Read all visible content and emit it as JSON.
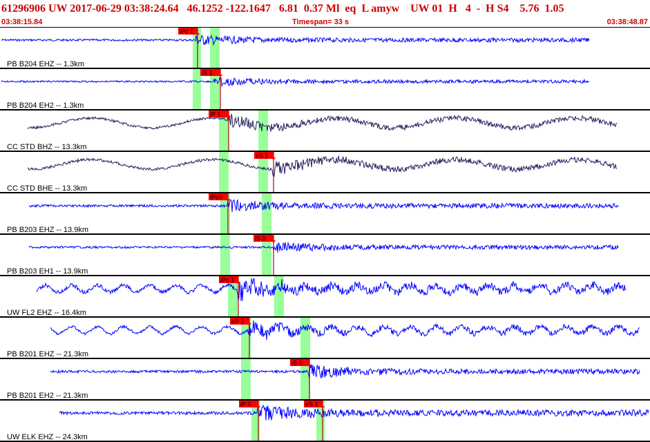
{
  "header": {
    "title": "61296906 UW 2017-06-29 03:38:24.64   46.1252 -122.1647   6.81  0.37 Ml  eq  L amyw    UW 01  H   4  -  H S4    5.76  1.05",
    "start_time": "03:38:15.84",
    "timespan": "Timespan=  33 s",
    "end_time": "03:38:48.87"
  },
  "colors": {
    "header_text": "#cc0000",
    "trace_blue": "#0000ff",
    "trace_navy": "#202060",
    "phase_window": "#99ff99",
    "pick_flag": "#ff0000"
  },
  "panels": [
    {
      "label": "PB B204 EHZ -- 1.3km",
      "color": "blue",
      "picks": [
        {
          "text": "iPc 1",
          "flag_at": "left"
        }
      ],
      "signal": {
        "start": 2,
        "end": 853,
        "onset": 283,
        "amp": 12
      }
    },
    {
      "label": "PB B204 EH2 -- 1.3km",
      "color": "blue",
      "picks": [
        {
          "text": "iS 1",
          "flag_at": "left"
        }
      ],
      "signal": {
        "start": 2,
        "end": 853,
        "onset": 310,
        "amp": 10
      }
    },
    {
      "label": "CC STD BHZ -- 13.3km",
      "color": "navy",
      "picks": [
        {
          "text": "iP 1",
          "flag_at": "left"
        }
      ],
      "signal": {
        "start": 40,
        "end": 893,
        "onset": 330,
        "amp": 15
      }
    },
    {
      "label": "CC STD BHE -- 13.3km",
      "color": "navy",
      "picks": [
        {
          "text": "eS 1",
          "flag_at": "left"
        }
      ],
      "signal": {
        "start": 40,
        "end": 893,
        "onset": 395,
        "amp": 16
      }
    },
    {
      "label": "PB B203 EHZ -- 13.9km",
      "color": "blue",
      "picks": [
        {
          "text": "iPc0",
          "flag_at": "left"
        }
      ],
      "signal": {
        "start": 42,
        "end": 895,
        "onset": 330,
        "amp": 14
      }
    },
    {
      "label": "PB B203 EH1 -- 13.9km",
      "color": "blue",
      "picks": [
        {
          "text": "iS 0",
          "flag_at": "left"
        }
      ],
      "signal": {
        "start": 42,
        "end": 895,
        "onset": 395,
        "amp": 12
      }
    },
    {
      "label": "UW FL2 EHZ -- 16.4km",
      "color": "blue",
      "picks": [
        {
          "text": "iPd 1",
          "flag_at": "left"
        }
      ],
      "signal": {
        "start": 53,
        "end": 906,
        "onset": 344,
        "amp": 22
      }
    },
    {
      "label": "PB B201 EHZ -- 21.3km",
      "color": "blue",
      "picks": [
        {
          "text": "eP 2",
          "flag_at": "left"
        }
      ],
      "signal": {
        "start": 73,
        "end": 926,
        "onset": 360,
        "amp": 16
      }
    },
    {
      "label": "PB B201 EH2 -- 21.3km",
      "color": "blue",
      "picks": [
        {
          "text": "iS 0",
          "flag_at": "left"
        }
      ],
      "signal": {
        "start": 73,
        "end": 926,
        "onset": 447,
        "amp": 15
      }
    },
    {
      "label": "UW ELK EHZ -- 24.3km",
      "color": "blue",
      "picks": [
        {
          "text": "iP 0",
          "flag_at": "left"
        },
        {
          "text": "eS 1",
          "flag_at": "left"
        }
      ],
      "signal": {
        "start": 86,
        "end": 939,
        "onset": 373,
        "amp": 18
      }
    }
  ]
}
